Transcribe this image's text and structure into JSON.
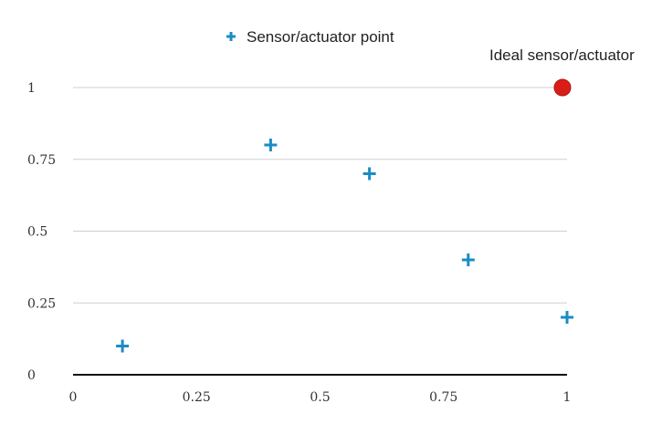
{
  "chart_data": {
    "type": "scatter",
    "title": "",
    "xlabel": "",
    "ylabel": "",
    "xlim": [
      0,
      1
    ],
    "ylim": [
      0,
      1
    ],
    "grid": true,
    "legend_position": "top-center",
    "x_ticks": [
      "0",
      "0.25",
      "0.5",
      "0.75",
      "1"
    ],
    "y_ticks": [
      "0",
      "0.25",
      "0.5",
      "0.75",
      "1"
    ],
    "series": [
      {
        "name": "Sensor/actuator point",
        "marker": "plus",
        "color": "#1a8cc4",
        "x": [
          0.1,
          0.4,
          0.6,
          0.8,
          1.0
        ],
        "y": [
          0.1,
          0.8,
          0.7,
          0.4,
          0.2
        ]
      }
    ],
    "annotations": [
      {
        "text": "Ideal sensor/actuator",
        "marker": "circle",
        "color": "#d91e18",
        "x": 1.0,
        "y": 1.0
      }
    ]
  }
}
